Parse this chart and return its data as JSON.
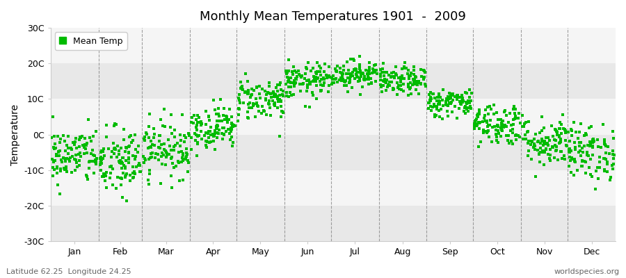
{
  "title": "Monthly Mean Temperatures 1901  -  2009",
  "ylabel": "Temperature",
  "subtitle_left": "Latitude 62.25  Longitude 24.25",
  "subtitle_right": "worldspecies.org",
  "legend_label": "Mean Temp",
  "ylim": [
    -30,
    30
  ],
  "yticks": [
    -30,
    -20,
    -10,
    0,
    10,
    20,
    30
  ],
  "ytick_labels": [
    "-30C",
    "-20C",
    "-10C",
    "0C",
    "10C",
    "20C",
    "30C"
  ],
  "months": [
    "Jan",
    "Feb",
    "Mar",
    "Apr",
    "May",
    "Jun",
    "Jul",
    "Aug",
    "Sep",
    "Oct",
    "Nov",
    "Dec"
  ],
  "dot_color": "#00bb00",
  "bg_color": "#ffffff",
  "plot_bg_color": "#ffffff",
  "band_colors": [
    "#e8e8e8",
    "#f5f5f5"
  ],
  "dashed_line_color": "#888888",
  "n_years": 109,
  "mean_temps": [
    -6,
    -8,
    -4,
    2,
    10,
    15,
    17,
    15,
    9,
    3,
    -2,
    -5
  ],
  "std_temps": [
    4,
    5,
    4,
    3,
    3,
    2.5,
    2,
    2,
    2,
    3,
    3.5,
    4
  ],
  "seed": 42,
  "dot_size": 5
}
